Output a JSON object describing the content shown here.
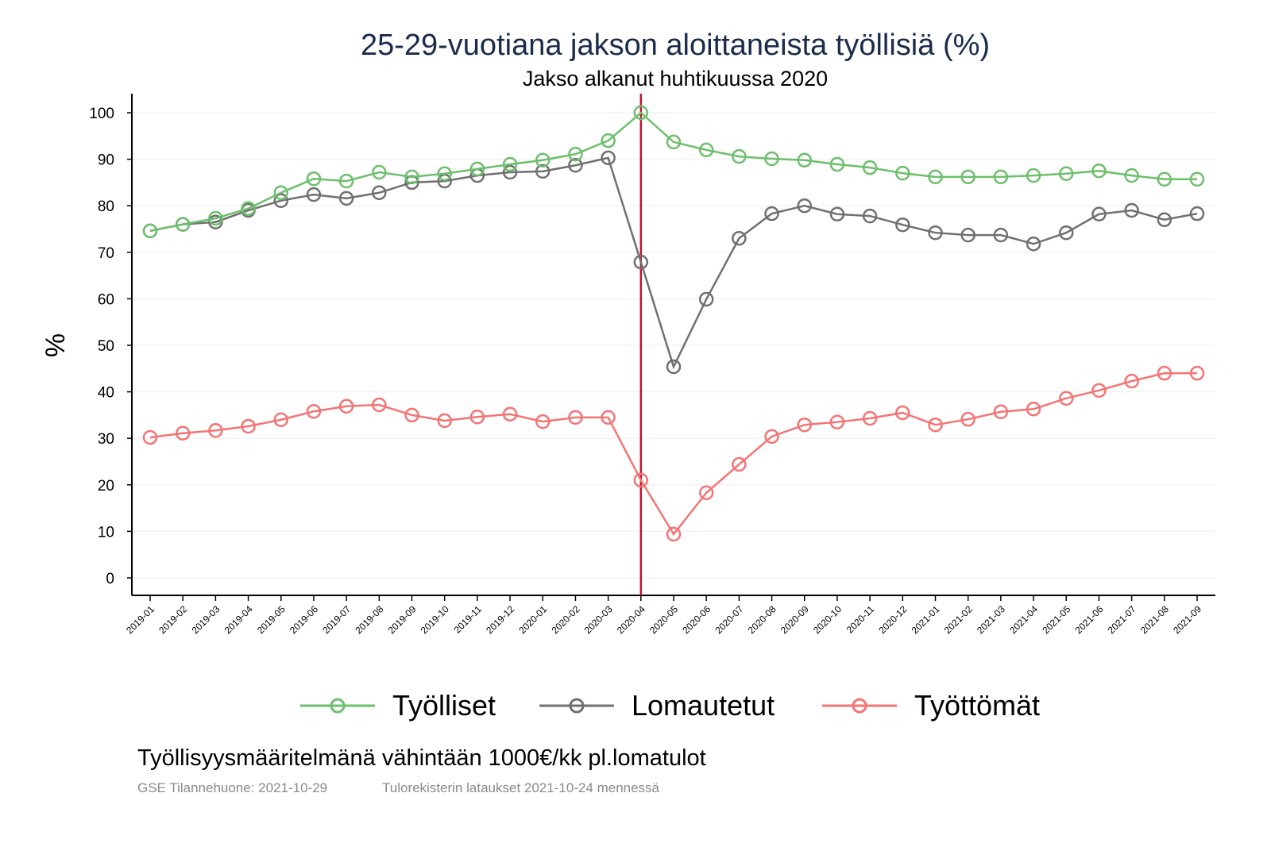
{
  "chart_data": {
    "type": "line",
    "title": "25-29-vuotiana jakson aloittaneista työllisiä (%)",
    "subtitle": "Jakso alkanut huhtikuussa 2020",
    "xlabel": "",
    "ylabel": "%",
    "ylim": [
      -4,
      104
    ],
    "yticks": [
      0,
      10,
      20,
      30,
      40,
      50,
      60,
      70,
      80,
      90,
      100
    ],
    "grid": true,
    "legend_position": "bottom",
    "vline": {
      "x": "2020-04",
      "color": "#c8102e"
    },
    "x": [
      "2019-01",
      "2019-02",
      "2019-03",
      "2019-04",
      "2019-05",
      "2019-06",
      "2019-07",
      "2019-08",
      "2019-09",
      "2019-10",
      "2019-11",
      "2019-12",
      "2020-01",
      "2020-02",
      "2020-03",
      "2020-04",
      "2020-05",
      "2020-06",
      "2020-07",
      "2020-08",
      "2020-09",
      "2020-10",
      "2020-11",
      "2020-12",
      "2021-01",
      "2021-02",
      "2021-03",
      "2021-04",
      "2021-05",
      "2021-06",
      "2021-07",
      "2021-08",
      "2021-09"
    ],
    "series": [
      {
        "name": "Työlliset",
        "color": "#6cbf6c",
        "values": [
          74.6,
          76.0,
          77.3,
          79.4,
          82.8,
          85.8,
          85.3,
          87.2,
          86.2,
          86.9,
          87.9,
          88.9,
          89.8,
          91.1,
          94.0,
          100,
          93.7,
          92.0,
          90.6,
          90.1,
          89.8,
          88.9,
          88.2,
          87.0,
          86.2,
          86.2,
          86.2,
          86.5,
          86.9,
          87.5,
          86.5,
          85.7,
          85.7
        ]
      },
      {
        "name": "Lomautetut",
        "color": "#707070",
        "values": [
          74.6,
          76.0,
          76.5,
          79.0,
          81.1,
          82.4,
          81.6,
          82.8,
          85.0,
          85.3,
          86.5,
          87.2,
          87.4,
          88.7,
          90.3,
          67.9,
          45.4,
          59.9,
          73.0,
          78.3,
          80.0,
          78.2,
          77.8,
          75.9,
          74.2,
          73.7,
          73.7,
          71.8,
          74.2,
          78.2,
          79.0,
          77.0,
          78.3
        ]
      },
      {
        "name": "Työttömät",
        "color": "#f47474",
        "values": [
          30.2,
          31.1,
          31.7,
          32.6,
          34.0,
          35.8,
          36.9,
          37.2,
          35.0,
          33.8,
          34.6,
          35.2,
          33.6,
          34.5,
          34.5,
          21.0,
          9.4,
          18.3,
          24.4,
          30.4,
          32.9,
          33.5,
          34.3,
          35.5,
          32.9,
          34.1,
          35.7,
          36.3,
          38.6,
          40.3,
          42.3,
          44.0,
          44.0
        ]
      }
    ]
  },
  "footer": {
    "note": "Työllisyysmääritelmänä vähintään 1000€/kk pl.lomatulot",
    "source": "GSE Tilannehuone: 2021-10-29",
    "data_note": "Tulorekisterin lataukset 2021-10-24 mennessä"
  }
}
